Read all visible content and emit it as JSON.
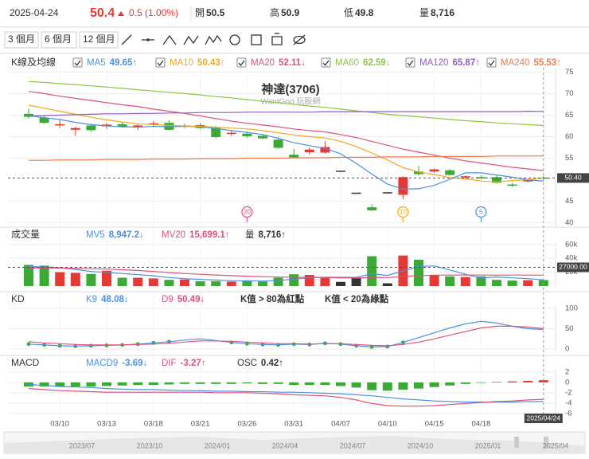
{
  "header": {
    "date": "2025-04-24",
    "price": 50.4,
    "change": "0.5 (1.00%)",
    "open": {
      "label": "開",
      "value": 50.5
    },
    "high": {
      "label": "高",
      "value": 50.9
    },
    "low": {
      "label": "低",
      "value": 49.8
    },
    "volume": {
      "label": "量",
      "value": "8,716"
    }
  },
  "toolbar": {
    "ranges": [
      "3 個月",
      "6 個月",
      "12 個月"
    ]
  },
  "navigator": {
    "labels": [
      "2023/07",
      "2023/10",
      "2024/01",
      "2024/04",
      "2024/07",
      "2024/10",
      "2025/01",
      "2025/04"
    ]
  },
  "chart_data": [
    {
      "type": "candlestick",
      "title": "K線及均線",
      "chart_title": "神達(3706)",
      "subtitle": "WantGoo 玩股網",
      "up_color": "#e53935",
      "down_color": "#3aa935",
      "flat_color": "#333333",
      "legend_checkboxes": true,
      "grid": true,
      "categories": [
        null,
        null,
        "03/10",
        null,
        null,
        "03/13",
        null,
        null,
        "03/18",
        null,
        null,
        "03/21",
        null,
        null,
        "03/26",
        null,
        null,
        "03/31",
        null,
        null,
        "04/07",
        null,
        null,
        "04/10",
        null,
        null,
        "04/15",
        null,
        null,
        "04/18",
        null,
        null,
        null,
        null
      ],
      "candles": {
        "open": [
          65.3,
          64.4,
          62.6,
          61.6,
          62.6,
          62.4,
          62.9,
          62.2,
          62.8,
          63.2,
          62.4,
          62.7,
          62.0,
          60.8,
          60.7,
          60.2,
          59.3,
          55.8,
          56.4,
          56.3,
          52.1,
          47.0,
          43.6,
          47.1,
          46.5,
          51.9,
          51.9,
          52.2,
          50.6,
          50.6,
          50.6,
          48.9,
          49.6,
          50.5
        ],
        "high": [
          66.5,
          64.9,
          63.9,
          62.3,
          63.0,
          63.2,
          63.5,
          63.0,
          63.6,
          63.8,
          63.0,
          63.2,
          62.5,
          61.5,
          61.2,
          60.6,
          60.0,
          57.2,
          57.5,
          58.9,
          52.1,
          47.0,
          44.3,
          47.1,
          50.8,
          53.2,
          52.6,
          52.5,
          51.0,
          51.0,
          51.0,
          49.3,
          50.3,
          50.9
        ],
        "low": [
          64.2,
          63.0,
          62.0,
          60.2,
          61.2,
          61.8,
          62.0,
          61.5,
          62.3,
          61.5,
          62.0,
          61.8,
          59.6,
          60.2,
          59.8,
          59.4,
          57.2,
          55.0,
          55.8,
          56.0,
          52.1,
          47.0,
          42.7,
          47.1,
          45.5,
          51.0,
          51.6,
          50.9,
          50.2,
          50.2,
          49.1,
          48.3,
          49.4,
          49.8
        ],
        "close": [
          64.6,
          63.2,
          62.9,
          62.0,
          61.5,
          62.8,
          62.3,
          62.6,
          63.1,
          61.6,
          62.6,
          62.0,
          59.9,
          60.9,
          60.1,
          59.6,
          57.4,
          55.2,
          57.0,
          57.6,
          52.1,
          47.0,
          42.9,
          47.1,
          50.6,
          51.3,
          52.4,
          51.1,
          50.8,
          50.5,
          49.3,
          48.6,
          49.9,
          50.4
        ]
      },
      "series": [
        {
          "name": "MA5",
          "color": "#4a90e2",
          "legend_label": "49.65↑",
          "values": [
            64.9,
            64.4,
            64.0,
            63.3,
            62.8,
            62.5,
            62.3,
            62.2,
            62.4,
            62.3,
            62.4,
            62.3,
            61.9,
            61.4,
            61.0,
            60.5,
            59.6,
            58.6,
            57.9,
            57.3,
            56.0,
            53.8,
            51.3,
            49.0,
            47.8,
            47.9,
            48.7,
            50.1,
            51.6,
            51.6,
            51.1,
            50.6,
            50.0,
            49.65
          ]
        },
        {
          "name": "MA10",
          "color": "#f0a818",
          "legend_label": "50.43↑",
          "values": [
            67.3,
            66.6,
            65.9,
            65.2,
            64.5,
            63.9,
            63.4,
            63.0,
            62.8,
            62.6,
            62.5,
            62.4,
            62.2,
            62.0,
            61.8,
            61.4,
            60.9,
            60.4,
            60.0,
            59.7,
            58.9,
            57.7,
            56.2,
            54.6,
            52.8,
            51.8,
            51.2,
            50.5,
            50.2,
            49.7,
            49.5,
            49.8,
            50.0,
            50.43
          ]
        },
        {
          "name": "MA20",
          "color": "#e0507a",
          "legend_label": "52.11↓",
          "values": [
            70.5,
            70.0,
            69.4,
            68.9,
            68.4,
            67.9,
            67.4,
            67.0,
            66.4,
            65.9,
            65.4,
            64.8,
            64.2,
            63.6,
            63.1,
            62.7,
            62.3,
            61.8,
            61.4,
            61.1,
            60.5,
            59.8,
            58.9,
            58.0,
            57.1,
            56.4,
            55.7,
            55.0,
            54.4,
            53.9,
            53.4,
            52.9,
            52.5,
            52.11
          ]
        },
        {
          "name": "MA60",
          "color": "#8cc63f",
          "legend_label": "62.59↓",
          "values": [
            72.8,
            72.6,
            72.3,
            72.1,
            71.8,
            71.5,
            71.2,
            70.9,
            70.6,
            70.3,
            70.0,
            69.7,
            69.3,
            69.0,
            68.6,
            68.2,
            67.9,
            67.5,
            67.1,
            66.8,
            66.4,
            66.0,
            65.6,
            65.2,
            64.9,
            64.6,
            64.3,
            64.0,
            63.7,
            63.5,
            63.2,
            63.0,
            62.8,
            62.59
          ]
        },
        {
          "name": "MA120",
          "color": "#8e5cc7",
          "legend_label": "65.87↑",
          "values": [
            64.8,
            64.9,
            65.0,
            65.1,
            65.2,
            65.3,
            65.3,
            65.4,
            65.4,
            65.5,
            65.5,
            65.6,
            65.6,
            65.6,
            65.7,
            65.7,
            65.7,
            65.7,
            65.7,
            65.8,
            65.8,
            65.8,
            65.8,
            65.8,
            65.8,
            65.8,
            65.8,
            65.8,
            65.8,
            65.8,
            65.8,
            65.8,
            65.9,
            65.87
          ]
        },
        {
          "name": "MA240",
          "color": "#f07a4a",
          "legend_label": "55.53↑",
          "values": [
            54.5,
            54.5,
            54.6,
            54.6,
            54.6,
            54.7,
            54.7,
            54.7,
            54.8,
            54.8,
            54.8,
            54.9,
            54.9,
            54.9,
            55.0,
            55.0,
            55.0,
            55.1,
            55.1,
            55.1,
            55.2,
            55.2,
            55.2,
            55.3,
            55.3,
            55.3,
            55.4,
            55.4,
            55.4,
            55.4,
            55.5,
            55.5,
            55.5,
            55.53
          ]
        }
      ],
      "markers": [
        null,
        null,
        null,
        null,
        null,
        null,
        null,
        null,
        null,
        null,
        null,
        null,
        null,
        null,
        "20",
        null,
        null,
        null,
        null,
        null,
        null,
        null,
        null,
        null,
        "10",
        null,
        null,
        null,
        null,
        "5",
        null,
        null,
        null,
        null
      ],
      "ylim": [
        39,
        76
      ],
      "yticks": [
        75,
        70,
        65,
        60,
        55,
        45,
        40
      ],
      "crosshair": {
        "value": 50.4,
        "label": "50.40"
      },
      "crosshair_date": "2025/04/24"
    },
    {
      "type": "bar",
      "title": "成交量",
      "grid": true,
      "values": [
        30500,
        29500,
        20000,
        19000,
        17500,
        22000,
        12000,
        12000,
        11000,
        9000,
        9500,
        7000,
        7000,
        6500,
        8000,
        6500,
        12000,
        17000,
        16000,
        12000,
        6000,
        12000,
        43000,
        4000,
        44000,
        38000,
        16000,
        14000,
        13000,
        14000,
        9000,
        8000,
        8500,
        8716
      ],
      "series": [
        {
          "name": "MV5",
          "color": "#4a90e2",
          "legend_label": "8,947.2↓",
          "values": [
            28000,
            27500,
            26500,
            24000,
            21000,
            19600,
            18000,
            16500,
            14800,
            12300,
            10700,
            9700,
            8700,
            7800,
            7600,
            7200,
            8000,
            10000,
            11900,
            12700,
            12600,
            12600,
            17800,
            15400,
            21800,
            28200,
            29000,
            23200,
            17000,
            11600,
            13200,
            11800,
            10700,
            8947.2
          ]
        },
        {
          "name": "MV20",
          "color": "#e0507a",
          "legend_label": "15,699.1↑",
          "values": [
            26000,
            26300,
            26000,
            25500,
            25000,
            24500,
            23500,
            22500,
            21000,
            19500,
            18000,
            17000,
            16000,
            15000,
            14200,
            13500,
            13000,
            12800,
            12500,
            12300,
            11800,
            11600,
            12500,
            12300,
            13800,
            15200,
            15700,
            15900,
            16000,
            15900,
            15900,
            15800,
            15800,
            15699.1
          ]
        }
      ],
      "extra_legend": [
        {
          "name": "量",
          "label": "8,716↑"
        }
      ],
      "ylim": [
        0,
        62000
      ],
      "yticks": [
        {
          "value": 60000,
          "label": "60k"
        },
        {
          "value": 40000,
          "label": "40k"
        },
        {
          "value": 20000,
          "label": "20k"
        }
      ],
      "crosshair": {
        "value": 27000,
        "label": "27000.00"
      }
    },
    {
      "type": "line",
      "title": "KD",
      "grid": true,
      "series": [
        {
          "name": "K9",
          "color": "#4a90e2",
          "legend_label": "48.08↓",
          "values": [
            12,
            10,
            8,
            7,
            8,
            9,
            10,
            12,
            15,
            18,
            22,
            25,
            21,
            16,
            13,
            11,
            10,
            12,
            11,
            14,
            12,
            8,
            5,
            6,
            16,
            28,
            40,
            52,
            62,
            68,
            64,
            56,
            50,
            48.08
          ]
        },
        {
          "name": "D9",
          "color": "#e0507a",
          "legend_label": "50.49↓",
          "values": [
            18,
            15,
            13,
            11,
            10,
            10,
            10,
            11,
            12,
            14,
            17,
            20,
            20,
            19,
            17,
            15,
            13,
            13,
            12,
            13,
            13,
            11,
            9,
            8,
            11,
            17,
            25,
            34,
            43,
            52,
            56,
            56,
            54,
            50.49
          ]
        }
      ],
      "notes": [
        "K值 > 80為紅點",
        "K值 < 20為綠點"
      ],
      "red_dot_above": 80,
      "green_dot_below": 20,
      "ylim": [
        -6,
        106
      ],
      "yticks": [
        100,
        50,
        0
      ]
    },
    {
      "type": "macd",
      "title": "MACD",
      "grid": true,
      "series": [
        {
          "name": "MACD9",
          "color": "#4a90e2",
          "legend_label": "-3.69↓",
          "values": [
            -0.4,
            -0.6,
            -0.8,
            -0.9,
            -1.0,
            -1.2,
            -1.3,
            -1.4,
            -1.4,
            -1.5,
            -1.6,
            -1.6,
            -1.7,
            -1.7,
            -1.8,
            -1.8,
            -1.9,
            -1.9,
            -2.0,
            -2.1,
            -2.2,
            -2.4,
            -2.6,
            -2.9,
            -3.2,
            -3.4,
            -3.6,
            -3.7,
            -3.8,
            -3.8,
            -3.8,
            -3.8,
            -3.7,
            -3.69
          ]
        },
        {
          "name": "DIF",
          "color": "#e0507a",
          "legend_label": "-3.27↑",
          "values": [
            -1.2,
            -1.4,
            -1.6,
            -1.7,
            -1.8,
            -1.9,
            -1.9,
            -1.9,
            -1.9,
            -1.9,
            -1.9,
            -1.9,
            -2.0,
            -2.0,
            -2.0,
            -2.1,
            -2.2,
            -2.4,
            -2.5,
            -2.6,
            -2.9,
            -3.4,
            -4.1,
            -4.5,
            -4.6,
            -4.6,
            -4.5,
            -4.3,
            -4.1,
            -3.9,
            -3.7,
            -3.6,
            -3.4,
            -3.27
          ]
        }
      ],
      "histogram": {
        "name": "OSC",
        "color": "#333333",
        "legend_label": "0.42↑",
        "values": [
          -0.8,
          -0.8,
          -0.8,
          -0.8,
          -0.8,
          -0.7,
          -0.6,
          -0.5,
          -0.5,
          -0.4,
          -0.3,
          -0.3,
          -0.3,
          -0.3,
          -0.2,
          -0.3,
          -0.3,
          -0.5,
          -0.5,
          -0.5,
          -0.7,
          -1.0,
          -1.5,
          -1.6,
          -1.4,
          -1.2,
          -0.9,
          -0.6,
          -0.3,
          -0.1,
          0.1,
          0.2,
          0.3,
          0.42
        ]
      },
      "ylim": [
        -6.5,
        2.6
      ],
      "yticks": [
        2,
        0,
        -2,
        -4,
        -6
      ]
    }
  ]
}
